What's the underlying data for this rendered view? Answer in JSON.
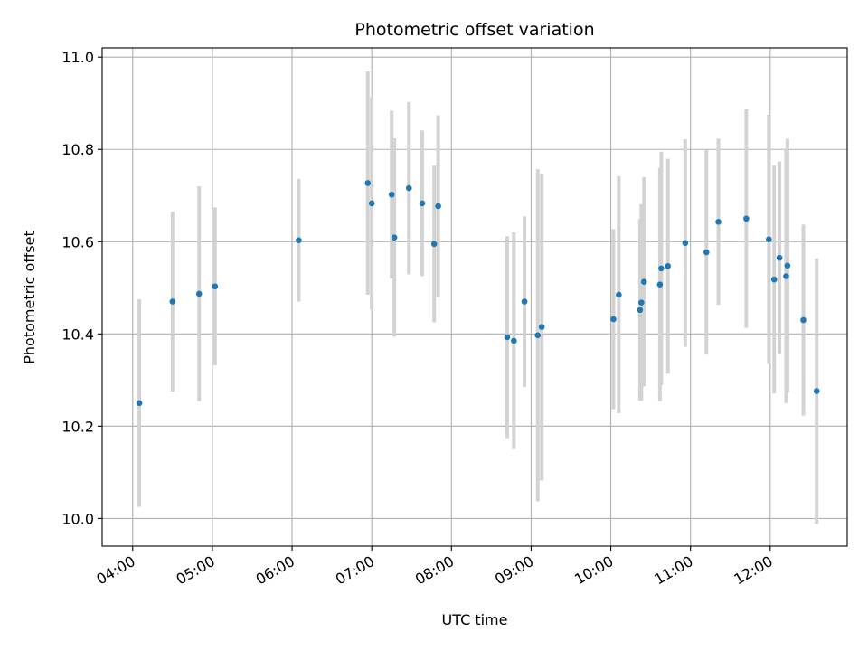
{
  "chart_data": {
    "type": "scatter",
    "title": "Photometric offset variation",
    "xlabel": "UTC time",
    "ylabel": "Photometric offset",
    "x_tick_labels": [
      "04:00",
      "05:00",
      "06:00",
      "07:00",
      "08:00",
      "09:00",
      "10:00",
      "11:00",
      "12:00"
    ],
    "y_ticks": [
      10.0,
      10.2,
      10.4,
      10.6,
      10.8,
      11.0
    ],
    "y_tick_labels": [
      "10.0",
      "10.2",
      "10.4",
      "10.6",
      "10.8",
      "11.0"
    ],
    "xlim": [
      "03:37",
      "12:58"
    ],
    "ylim": [
      9.94,
      11.02
    ],
    "grid": true,
    "colors": {
      "point": "#1f77b4",
      "error_bar": "#d3d3d3",
      "grid": "#b0b0b0"
    },
    "series": [
      {
        "points": [
          {
            "x": "04:05",
            "y": 10.25,
            "yerr": 0.225
          },
          {
            "x": "04:30",
            "y": 10.47,
            "yerr": 0.195
          },
          {
            "x": "04:50",
            "y": 10.487,
            "yerr": 0.233
          },
          {
            "x": "05:02",
            "y": 10.503,
            "yerr": 0.171
          },
          {
            "x": "06:05",
            "y": 10.603,
            "yerr": 0.133
          },
          {
            "x": "06:57",
            "y": 10.727,
            "yerr": 0.242
          },
          {
            "x": "07:00",
            "y": 10.683,
            "yerr": 0.23
          },
          {
            "x": "07:15",
            "y": 10.702,
            "yerr": 0.182
          },
          {
            "x": "07:17",
            "y": 10.609,
            "yerr": 0.215
          },
          {
            "x": "07:28",
            "y": 10.716,
            "yerr": 0.187
          },
          {
            "x": "07:38",
            "y": 10.683,
            "yerr": 0.158
          },
          {
            "x": "07:47",
            "y": 10.595,
            "yerr": 0.17
          },
          {
            "x": "07:50",
            "y": 10.677,
            "yerr": 0.197
          },
          {
            "x": "08:42",
            "y": 10.393,
            "yerr": 0.219
          },
          {
            "x": "08:47",
            "y": 10.385,
            "yerr": 0.235
          },
          {
            "x": "08:55",
            "y": 10.47,
            "yerr": 0.185
          },
          {
            "x": "09:05",
            "y": 10.397,
            "yerr": 0.36
          },
          {
            "x": "09:08",
            "y": 10.415,
            "yerr": 0.333
          },
          {
            "x": "10:02",
            "y": 10.432,
            "yerr": 0.195
          },
          {
            "x": "10:06",
            "y": 10.485,
            "yerr": 0.257
          },
          {
            "x": "10:22",
            "y": 10.452,
            "yerr": 0.197
          },
          {
            "x": "10:23",
            "y": 10.468,
            "yerr": 0.213
          },
          {
            "x": "10:25",
            "y": 10.513,
            "yerr": 0.227
          },
          {
            "x": "10:37",
            "y": 10.507,
            "yerr": 0.253
          },
          {
            "x": "10:38",
            "y": 10.542,
            "yerr": 0.253
          },
          {
            "x": "10:43",
            "y": 10.547,
            "yerr": 0.233
          },
          {
            "x": "10:56",
            "y": 10.597,
            "yerr": 0.225
          },
          {
            "x": "11:12",
            "y": 10.577,
            "yerr": 0.222
          },
          {
            "x": "11:21",
            "y": 10.643,
            "yerr": 0.18
          },
          {
            "x": "11:42",
            "y": 10.65,
            "yerr": 0.237
          },
          {
            "x": "11:59",
            "y": 10.605,
            "yerr": 0.27
          },
          {
            "x": "12:03",
            "y": 10.518,
            "yerr": 0.247
          },
          {
            "x": "12:07",
            "y": 10.565,
            "yerr": 0.209
          },
          {
            "x": "12:12",
            "y": 10.525,
            "yerr": 0.275
          },
          {
            "x": "12:13",
            "y": 10.548,
            "yerr": 0.275
          },
          {
            "x": "12:25",
            "y": 10.43,
            "yerr": 0.207
          },
          {
            "x": "12:35",
            "y": 10.276,
            "yerr": 0.288
          }
        ]
      }
    ]
  }
}
